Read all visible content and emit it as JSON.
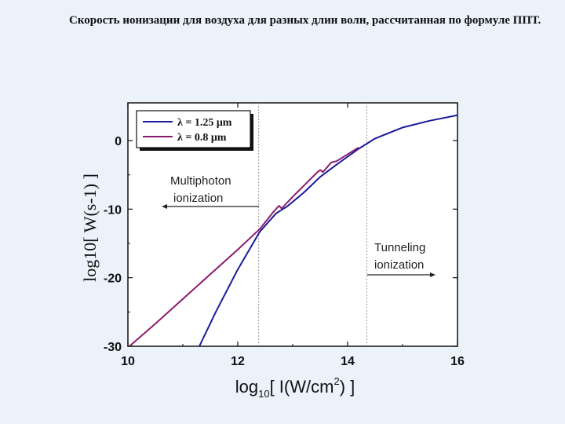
{
  "slide": {
    "caption": "Скорость ионизации для воздуха для разных длин волн, рассчитанная по формуле ППТ."
  },
  "chart_data": {
    "type": "line",
    "xlabel": "log10[ I(W/cm2) ]",
    "xlabel_parts": {
      "pre": "log",
      "sub": "10",
      "mid": "[ I(W/cm",
      "sup": "2",
      "post": ") ]"
    },
    "ylabel": "log10[ W(s-1) ]",
    "xlim": [
      10,
      16
    ],
    "ylim": [
      -30,
      5.5
    ],
    "xticks": [
      10,
      12,
      14,
      16
    ],
    "yticks": [
      0,
      -10,
      -20,
      -30
    ],
    "grid": false,
    "legend_position": "top-left",
    "vlines": [
      12.38,
      14.35
    ],
    "annotations": [
      {
        "lines": [
          "Multiphoton",
          "ionization"
        ],
        "arrow": "left"
      },
      {
        "lines": [
          "Tunneling",
          "ionization"
        ],
        "arrow": "right"
      }
    ],
    "series": [
      {
        "name": "λ = 1.25 μm",
        "color": "#1a1a99",
        "x": [
          11.3,
          11.6,
          12.0,
          12.4,
          12.7,
          12.8,
          12.9,
          13.2,
          13.5,
          13.8,
          14.2,
          14.5,
          15.0,
          15.5,
          16.0
        ],
        "y": [
          -30,
          -25,
          -18.8,
          -13.3,
          -10.6,
          -10.1,
          -9.6,
          -7.6,
          -5.3,
          -3.5,
          -1.2,
          0.3,
          1.9,
          2.9,
          3.7
        ]
      },
      {
        "name": "λ = 0.8 μm",
        "color": "#8b1a6e",
        "x": [
          10.0,
          10.5,
          11.0,
          11.5,
          12.0,
          12.4,
          12.65,
          12.75,
          12.8,
          13.0,
          13.2,
          13.45,
          13.5,
          13.55,
          13.7,
          13.8,
          14.2
        ],
        "y": [
          -30.2,
          -26.7,
          -23.1,
          -19.5,
          -15.9,
          -12.9,
          -10.4,
          -9.5,
          -9.9,
          -8.2,
          -6.6,
          -4.6,
          -4.3,
          -4.6,
          -3.2,
          -3.0,
          -1.0
        ]
      }
    ]
  }
}
